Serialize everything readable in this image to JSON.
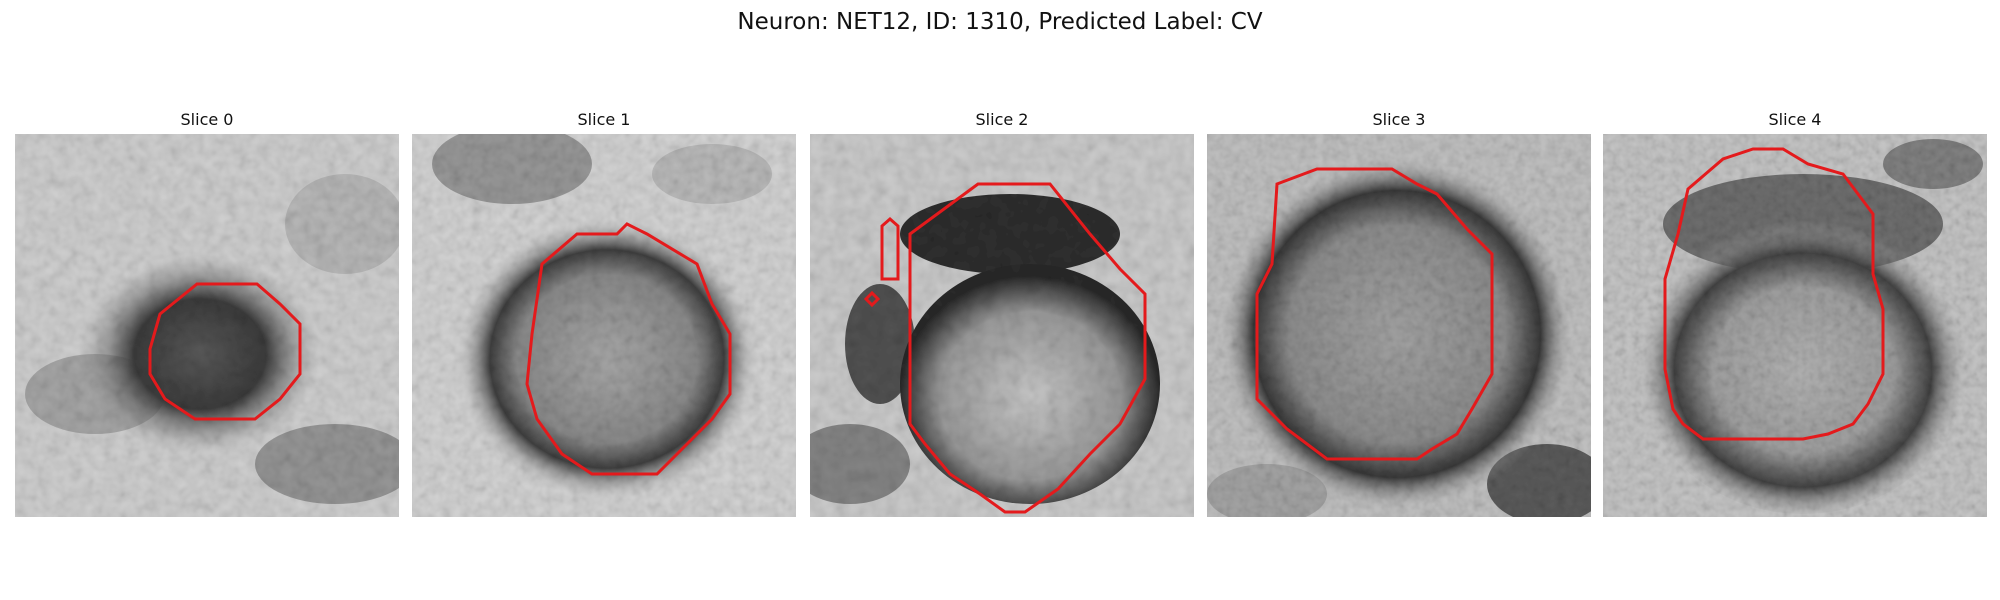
{
  "title": "Neuron: NET12, ID: 1310, Predicted Label: CV",
  "outline_color": "#e41a1c",
  "colormap": "gray",
  "slices": [
    {
      "label": "Slice 0"
    },
    {
      "label": "Slice 1"
    },
    {
      "label": "Slice 2"
    },
    {
      "label": "Slice 3"
    },
    {
      "label": "Slice 4"
    }
  ]
}
